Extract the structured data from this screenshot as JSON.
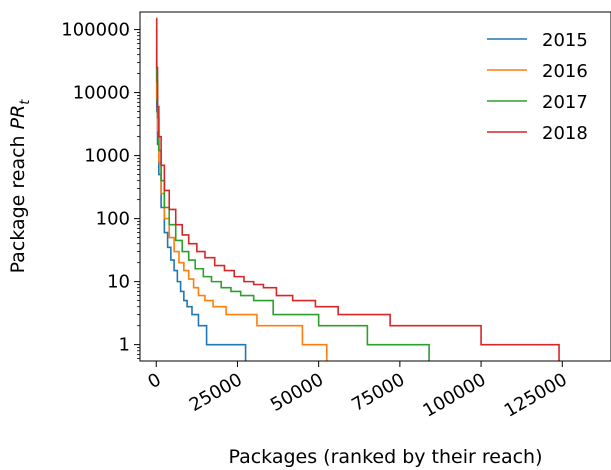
{
  "chart_data": {
    "type": "line",
    "title": "",
    "xlabel": "Packages (ranked by their reach)",
    "ylabel_main": "Package reach ",
    "ylabel_math_base": "PR",
    "ylabel_math_sub": "t",
    "x_scale": "linear",
    "y_scale": "log",
    "xlim": [
      -5000,
      140000
    ],
    "ylim": [
      0.55,
      190000
    ],
    "x_ticks": [
      0,
      25000,
      50000,
      75000,
      100000,
      125000
    ],
    "x_tick_labels": [
      "0",
      "25000",
      "50000",
      "75000",
      "100000",
      "125000"
    ],
    "y_ticks": [
      1,
      10,
      100,
      1000,
      10000,
      100000
    ],
    "y_tick_labels": [
      "1",
      "10",
      "100",
      "1000",
      "10000",
      "100000"
    ],
    "legend_position": "top-right",
    "grid": false,
    "series": [
      {
        "name": "2015",
        "color": "#1f77b4",
        "x": [
          0,
          150,
          400,
          800,
          1500,
          2500,
          3500,
          4500,
          5500,
          6500,
          7500,
          8500,
          9500,
          11000,
          13000,
          15500,
          22000,
          27500,
          27500
        ],
        "y": [
          30000,
          5000,
          1500,
          500,
          150,
          60,
          35,
          22,
          15,
          10,
          7,
          5,
          4,
          3,
          2,
          1,
          1,
          1,
          0.55
        ]
      },
      {
        "name": "2016",
        "color": "#ff7f0e",
        "x": [
          0,
          150,
          400,
          800,
          1500,
          2500,
          4000,
          5500,
          7000,
          8500,
          10000,
          11500,
          13000,
          15000,
          17500,
          21500,
          31000,
          45000,
          52500,
          52500
        ],
        "y": [
          50000,
          8000,
          2500,
          800,
          250,
          100,
          50,
          30,
          20,
          15,
          11,
          8,
          6,
          5,
          4,
          3,
          2,
          1,
          1,
          0.55
        ]
      },
      {
        "name": "2017",
        "color": "#2ca02c",
        "x": [
          0,
          150,
          400,
          800,
          1500,
          2500,
          4000,
          6000,
          8000,
          10000,
          12000,
          14500,
          17000,
          20000,
          23000,
          26000,
          30000,
          36000,
          50000,
          65000,
          84000,
          84000
        ],
        "y": [
          100000,
          15000,
          4000,
          1200,
          400,
          150,
          80,
          45,
          30,
          22,
          16,
          12,
          10,
          8,
          7,
          6,
          5,
          3,
          2,
          1,
          1,
          0.55
        ]
      },
      {
        "name": "2018",
        "color": "#d62728",
        "x": [
          0,
          150,
          400,
          800,
          1500,
          2500,
          4000,
          6000,
          8000,
          10000,
          12500,
          15000,
          18000,
          21000,
          24000,
          27000,
          30000,
          33000,
          37000,
          42000,
          49000,
          56000,
          72000,
          100000,
          124000,
          124000
        ],
        "y": [
          150000,
          25000,
          6000,
          2000,
          700,
          280,
          140,
          80,
          55,
          40,
          30,
          24,
          18,
          15,
          12,
          10,
          9,
          8,
          6,
          5,
          4,
          3,
          2,
          1,
          1,
          0.55
        ]
      }
    ]
  }
}
